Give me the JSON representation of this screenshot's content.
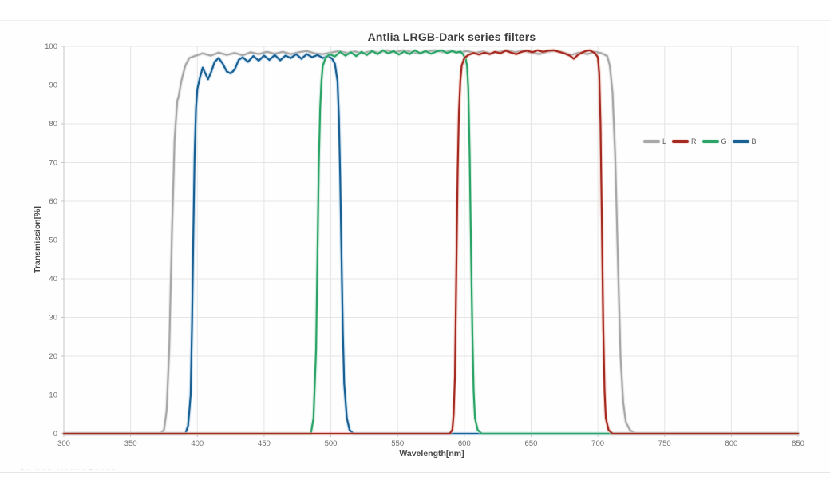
{
  "chart_data": {
    "type": "line",
    "title": "Antlia LRGB-Dark series filters",
    "xlabel": "Wavelength[nm]",
    "ylabel": "Transmission[%]",
    "xlim": [
      300,
      850
    ],
    "ylim": [
      0,
      100
    ],
    "x_ticks": [
      300,
      350,
      400,
      450,
      500,
      550,
      600,
      650,
      700,
      750,
      800,
      850
    ],
    "y_ticks": [
      0,
      10,
      20,
      30,
      40,
      50,
      60,
      70,
      80,
      90,
      100
    ],
    "grid": true,
    "legend": {
      "position": "center-right",
      "entries": [
        "L",
        "R",
        "G",
        "B"
      ]
    },
    "colors": {
      "grid": "#e5e5e5",
      "axis": "#c6c6c6",
      "tick_label": "#6e6e6e"
    },
    "series": [
      {
        "name": "L",
        "color": "#a8a8a8",
        "halo": "#dadada",
        "points": [
          [
            300,
            0
          ],
          [
            372,
            0
          ],
          [
            375,
            1
          ],
          [
            377,
            6
          ],
          [
            379,
            22
          ],
          [
            381,
            52
          ],
          [
            383,
            76
          ],
          [
            385,
            86
          ],
          [
            386,
            87
          ],
          [
            388,
            91
          ],
          [
            391,
            95
          ],
          [
            394,
            97
          ],
          [
            398,
            97.5
          ],
          [
            404,
            98.2
          ],
          [
            410,
            97.6
          ],
          [
            416,
            98.4
          ],
          [
            422,
            97.8
          ],
          [
            428,
            98.3
          ],
          [
            434,
            97.7
          ],
          [
            440,
            98.5
          ],
          [
            446,
            98
          ],
          [
            452,
            98.6
          ],
          [
            458,
            98.1
          ],
          [
            464,
            98.6
          ],
          [
            470,
            98
          ],
          [
            476,
            98.5
          ],
          [
            482,
            98.8
          ],
          [
            488,
            98.2
          ],
          [
            494,
            98
          ],
          [
            500,
            98.4
          ],
          [
            506,
            98.8
          ],
          [
            512,
            98.3
          ],
          [
            518,
            98.7
          ],
          [
            524,
            98.2
          ],
          [
            530,
            98.8
          ],
          [
            536,
            98.4
          ],
          [
            542,
            99
          ],
          [
            548,
            98.5
          ],
          [
            554,
            99
          ],
          [
            560,
            98.6
          ],
          [
            566,
            98.2
          ],
          [
            572,
            98.7
          ],
          [
            578,
            99
          ],
          [
            584,
            98.5
          ],
          [
            590,
            98.9
          ],
          [
            596,
            98.4
          ],
          [
            602,
            98.8
          ],
          [
            608,
            98.3
          ],
          [
            614,
            98.7
          ],
          [
            620,
            98.2
          ],
          [
            626,
            98.6
          ],
          [
            632,
            99
          ],
          [
            638,
            98.5
          ],
          [
            644,
            98.9
          ],
          [
            650,
            98.4
          ],
          [
            656,
            98
          ],
          [
            662,
            98.6
          ],
          [
            668,
            98.9
          ],
          [
            674,
            98.4
          ],
          [
            680,
            97.8
          ],
          [
            686,
            98.4
          ],
          [
            692,
            98
          ],
          [
            698,
            98.6
          ],
          [
            703,
            98.2
          ],
          [
            707,
            97.5
          ],
          [
            709,
            95
          ],
          [
            711,
            88
          ],
          [
            713,
            72
          ],
          [
            715,
            45
          ],
          [
            717,
            20
          ],
          [
            719,
            8
          ],
          [
            721,
            3
          ],
          [
            724,
            1
          ],
          [
            728,
            0
          ],
          [
            850,
            0
          ]
        ]
      },
      {
        "name": "B",
        "color": "#1b6092",
        "halo": "#9ec9e8",
        "points": [
          [
            300,
            0
          ],
          [
            391,
            0
          ],
          [
            393,
            2
          ],
          [
            395,
            10
          ],
          [
            396,
            28
          ],
          [
            397,
            52
          ],
          [
            398,
            72
          ],
          [
            399,
            84
          ],
          [
            400,
            89
          ],
          [
            402,
            92
          ],
          [
            404,
            94.5
          ],
          [
            406,
            93
          ],
          [
            408,
            91.5
          ],
          [
            410,
            93
          ],
          [
            413,
            96
          ],
          [
            416,
            97
          ],
          [
            419,
            95.5
          ],
          [
            422,
            93.5
          ],
          [
            425,
            93
          ],
          [
            428,
            94
          ],
          [
            431,
            96.5
          ],
          [
            434,
            97.2
          ],
          [
            438,
            96
          ],
          [
            442,
            97.5
          ],
          [
            446,
            96.3
          ],
          [
            450,
            97.6
          ],
          [
            454,
            96.5
          ],
          [
            458,
            97.8
          ],
          [
            462,
            96.4
          ],
          [
            466,
            97.6
          ],
          [
            470,
            97
          ],
          [
            474,
            98
          ],
          [
            478,
            96.8
          ],
          [
            482,
            98
          ],
          [
            486,
            97.2
          ],
          [
            490,
            97.8
          ],
          [
            494,
            97
          ],
          [
            498,
            97.5
          ],
          [
            501,
            96.8
          ],
          [
            503,
            95.5
          ],
          [
            505,
            91
          ],
          [
            506,
            82
          ],
          [
            507,
            66
          ],
          [
            508,
            46
          ],
          [
            509,
            26
          ],
          [
            510,
            13
          ],
          [
            512,
            4
          ],
          [
            514,
            1
          ],
          [
            517,
            0
          ],
          [
            850,
            0
          ]
        ]
      },
      {
        "name": "G",
        "color": "#2ca468",
        "halo": "#b7e2cb",
        "points": [
          [
            300,
            0
          ],
          [
            485,
            0
          ],
          [
            487,
            4
          ],
          [
            489,
            22
          ],
          [
            490,
            46
          ],
          [
            491,
            70
          ],
          [
            492,
            84
          ],
          [
            493,
            91
          ],
          [
            494,
            95
          ],
          [
            496,
            97
          ],
          [
            499,
            98
          ],
          [
            503,
            97.4
          ],
          [
            507,
            98.6
          ],
          [
            511,
            97.6
          ],
          [
            515,
            98.5
          ],
          [
            519,
            97.5
          ],
          [
            523,
            98.6
          ],
          [
            527,
            97.8
          ],
          [
            531,
            98.8
          ],
          [
            535,
            98
          ],
          [
            539,
            99
          ],
          [
            543,
            98.2
          ],
          [
            547,
            98.8
          ],
          [
            551,
            97.9
          ],
          [
            555,
            98.7
          ],
          [
            559,
            98
          ],
          [
            563,
            99
          ],
          [
            567,
            98.2
          ],
          [
            571,
            98.8
          ],
          [
            575,
            98.1
          ],
          [
            579,
            98.7
          ],
          [
            583,
            99
          ],
          [
            587,
            98.3
          ],
          [
            591,
            98.8
          ],
          [
            594,
            98.4
          ],
          [
            597,
            98.7
          ],
          [
            599,
            98
          ],
          [
            601,
            96.8
          ],
          [
            602,
            95
          ],
          [
            603,
            89
          ],
          [
            604,
            72
          ],
          [
            605,
            48
          ],
          [
            606,
            26
          ],
          [
            607,
            11
          ],
          [
            608,
            4
          ],
          [
            610,
            1
          ],
          [
            613,
            0
          ],
          [
            850,
            0
          ]
        ]
      },
      {
        "name": "R",
        "color": "#a52a21",
        "halo": "#e9b0a8",
        "points": [
          [
            300,
            0
          ],
          [
            589,
            0
          ],
          [
            591,
            1
          ],
          [
            592,
            5
          ],
          [
            593,
            15
          ],
          [
            594,
            42
          ],
          [
            595,
            68
          ],
          [
            596,
            83
          ],
          [
            597,
            91
          ],
          [
            598,
            95
          ],
          [
            600,
            97
          ],
          [
            603,
            97.8
          ],
          [
            607,
            98.3
          ],
          [
            611,
            97.9
          ],
          [
            615,
            98.4
          ],
          [
            619,
            98
          ],
          [
            623,
            98.6
          ],
          [
            627,
            98.2
          ],
          [
            631,
            98.9
          ],
          [
            635,
            98.4
          ],
          [
            639,
            98
          ],
          [
            643,
            98.6
          ],
          [
            647,
            98.9
          ],
          [
            651,
            98.5
          ],
          [
            655,
            99
          ],
          [
            659,
            98.6
          ],
          [
            663,
            98.9
          ],
          [
            667,
            99
          ],
          [
            671,
            98.6
          ],
          [
            675,
            98.2
          ],
          [
            679,
            97.6
          ],
          [
            682,
            96.8
          ],
          [
            685,
            97.8
          ],
          [
            688,
            98.4
          ],
          [
            691,
            98.8
          ],
          [
            694,
            99
          ],
          [
            696,
            98.6
          ],
          [
            698,
            98.2
          ],
          [
            700,
            97.2
          ],
          [
            701,
            93
          ],
          [
            702,
            80
          ],
          [
            703,
            55
          ],
          [
            704,
            28
          ],
          [
            705,
            11
          ],
          [
            706,
            4
          ],
          [
            708,
            1
          ],
          [
            711,
            0
          ],
          [
            850,
            0
          ]
        ]
      }
    ]
  },
  "watermark": "– ·· ········· · ··· ···· ·· – ·· ·······"
}
